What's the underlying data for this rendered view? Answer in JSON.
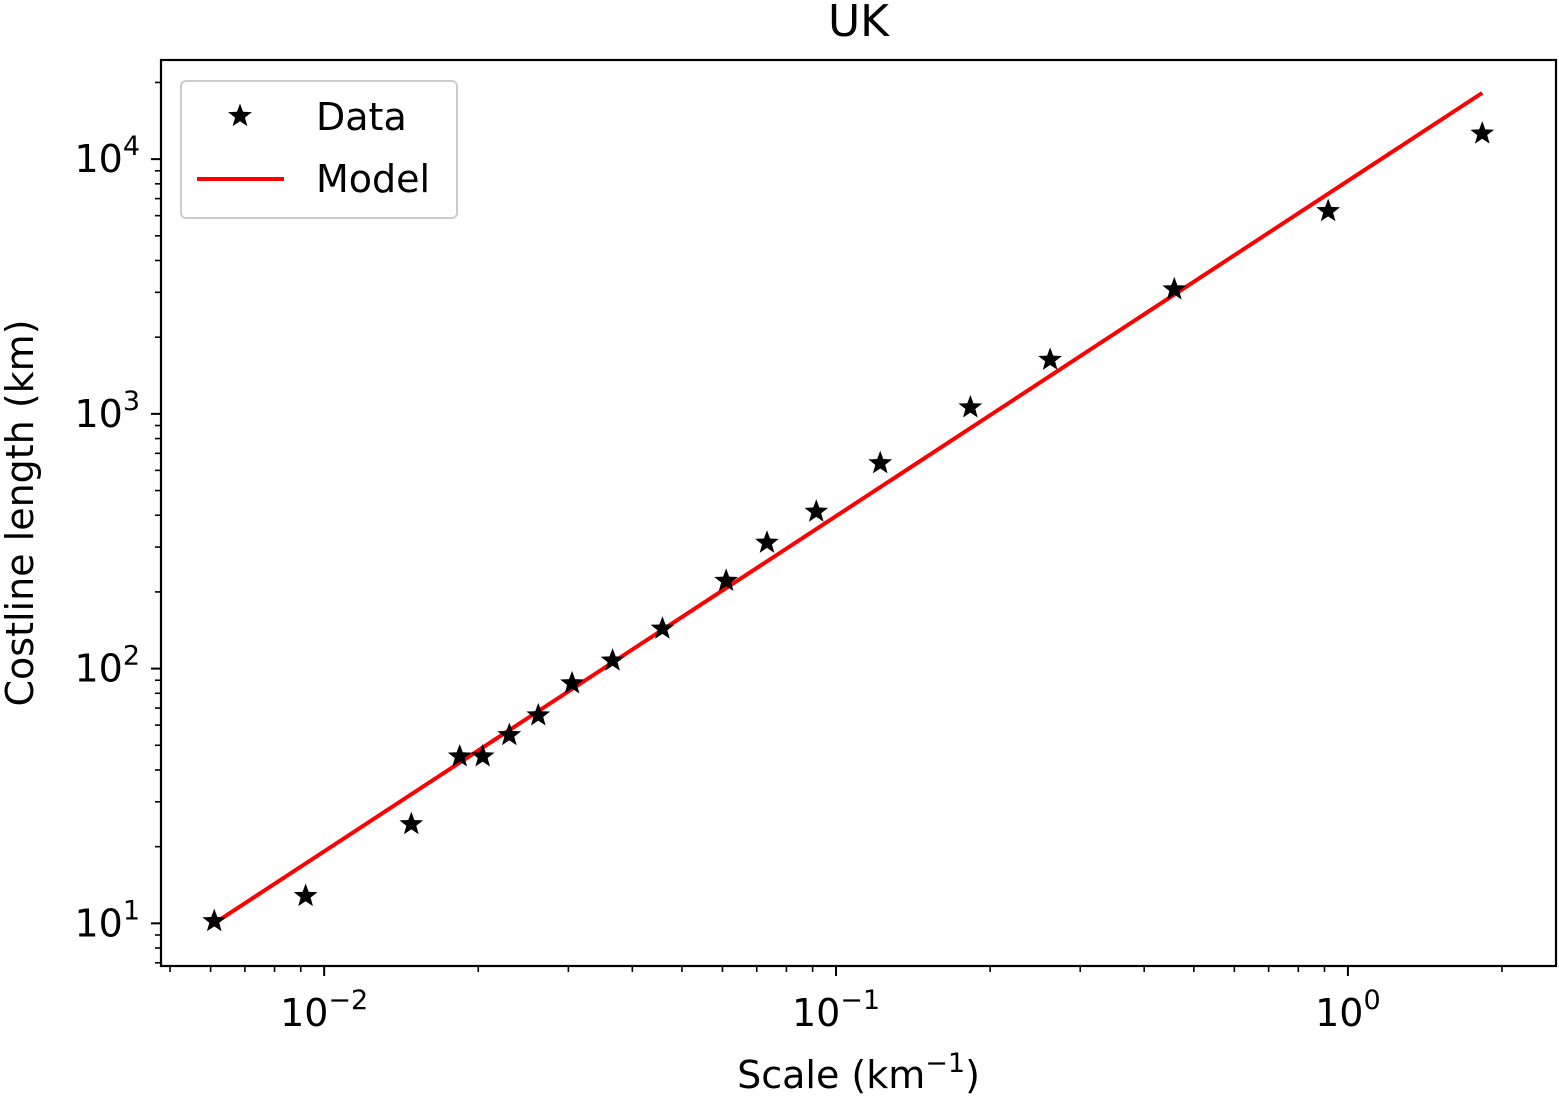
{
  "chart_data": {
    "type": "scatter",
    "title": "UK",
    "xlabel": "Scale (km",
    "xlabel_sup": "−1",
    "xlabel_suffix": ")",
    "ylabel": "Costline length (km)",
    "xscale": "log",
    "yscale": "log",
    "xlim": [
      0.0048,
      2.55
    ],
    "ylim": [
      6.8,
      24500
    ],
    "grid": false,
    "legend_position": "top-left",
    "x_tick_labels": [
      {
        "value": 0.01,
        "base": "10",
        "exp": "−2"
      },
      {
        "value": 0.1,
        "base": "10",
        "exp": "−1"
      },
      {
        "value": 1,
        "base": "10",
        "exp": "0"
      }
    ],
    "y_tick_labels": [
      {
        "value": 10,
        "base": "10",
        "exp": "1"
      },
      {
        "value": 100,
        "base": "10",
        "exp": "2"
      },
      {
        "value": 1000,
        "base": "10",
        "exp": "3"
      },
      {
        "value": 10000,
        "base": "10",
        "exp": "4"
      }
    ],
    "series": [
      {
        "name": "Data",
        "kind": "markers",
        "marker": "star",
        "color": "#000000",
        "points": [
          {
            "x": 0.0061,
            "y": 10.2
          },
          {
            "x": 0.0092,
            "y": 12.8
          },
          {
            "x": 0.0148,
            "y": 24.5
          },
          {
            "x": 0.0184,
            "y": 45.2
          },
          {
            "x": 0.0204,
            "y": 45.2
          },
          {
            "x": 0.023,
            "y": 54.8
          },
          {
            "x": 0.0262,
            "y": 65.5
          },
          {
            "x": 0.0305,
            "y": 87.5
          },
          {
            "x": 0.0366,
            "y": 107.5
          },
          {
            "x": 0.0458,
            "y": 143.5
          },
          {
            "x": 0.061,
            "y": 221.0
          },
          {
            "x": 0.0733,
            "y": 312.0
          },
          {
            "x": 0.0915,
            "y": 413.0
          },
          {
            "x": 0.122,
            "y": 640.0
          },
          {
            "x": 0.183,
            "y": 1060.0
          },
          {
            "x": 0.262,
            "y": 1630.0
          },
          {
            "x": 0.458,
            "y": 3080.0
          },
          {
            "x": 0.915,
            "y": 6250.0
          },
          {
            "x": 1.83,
            "y": 12600.0
          }
        ]
      },
      {
        "name": "Model",
        "kind": "line",
        "color": "#ff0000",
        "points": [
          {
            "x": 0.0061,
            "y": 10.0
          },
          {
            "x": 1.83,
            "y": 18200.0
          }
        ]
      }
    ]
  }
}
